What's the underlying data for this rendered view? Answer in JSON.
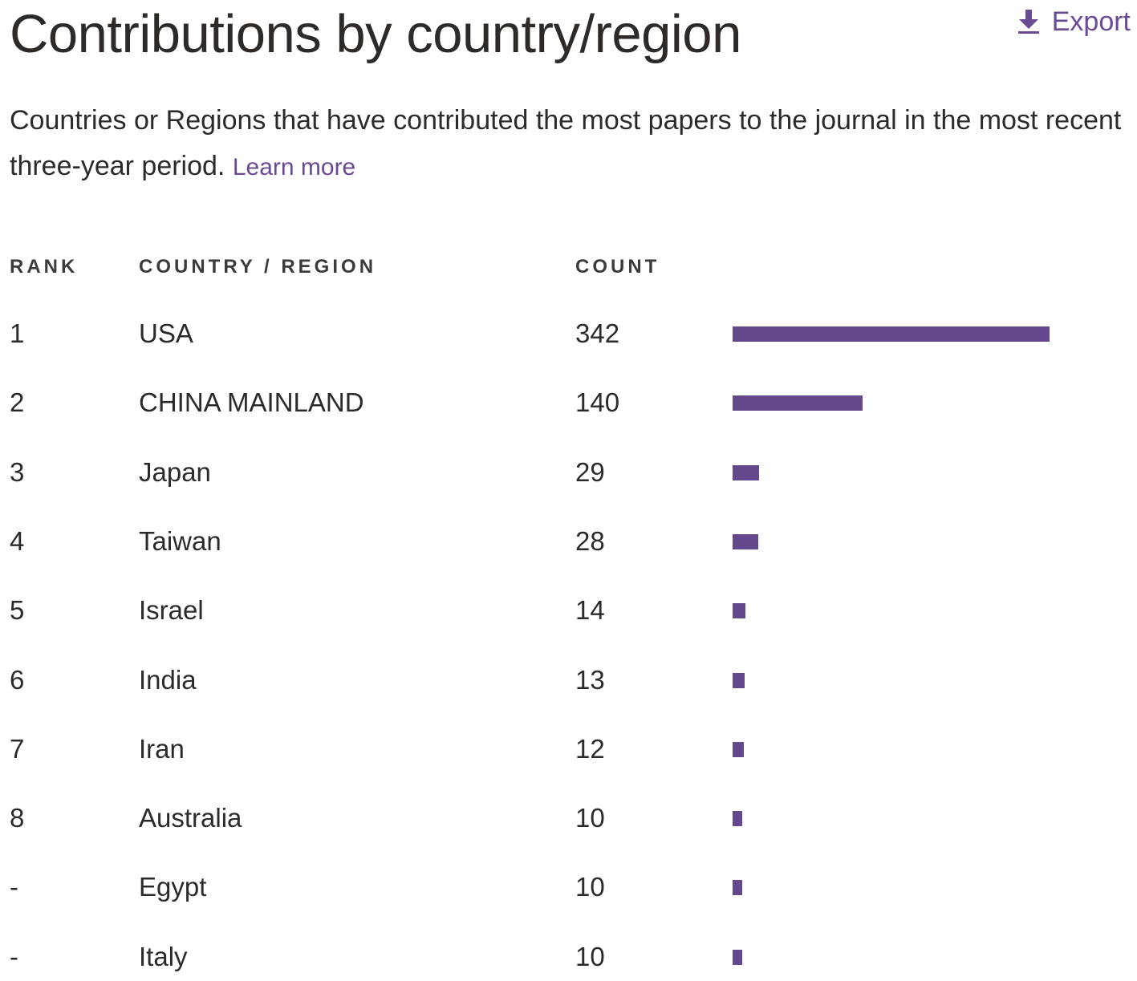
{
  "header": {
    "title": "Contributions by country/region",
    "export_label": "Export",
    "export_icon": "download-icon"
  },
  "description": {
    "text": "Countries or Regions that have contributed the most papers to the journal in the most recent three-year period.",
    "link_label": "Learn more"
  },
  "colors": {
    "bar": "#64488e",
    "link": "#6a4a92",
    "text": "#2e2a28"
  },
  "chart_data": {
    "type": "table",
    "columns": [
      "RANK",
      "COUNTRY / REGION",
      "COUNT"
    ],
    "rows": [
      {
        "rank": "1",
        "country": "USA",
        "count": 342
      },
      {
        "rank": "2",
        "country": "CHINA MAINLAND",
        "count": 140
      },
      {
        "rank": "3",
        "country": "Japan",
        "count": 29
      },
      {
        "rank": "4",
        "country": "Taiwan",
        "count": 28
      },
      {
        "rank": "5",
        "country": "Israel",
        "count": 14
      },
      {
        "rank": "6",
        "country": "India",
        "count": 13
      },
      {
        "rank": "7",
        "country": "Iran",
        "count": 12
      },
      {
        "rank": "8",
        "country": "Australia",
        "count": 10
      },
      {
        "rank": "-",
        "country": "Egypt",
        "count": 10
      },
      {
        "rank": "-",
        "country": "Italy",
        "count": 10
      }
    ]
  }
}
